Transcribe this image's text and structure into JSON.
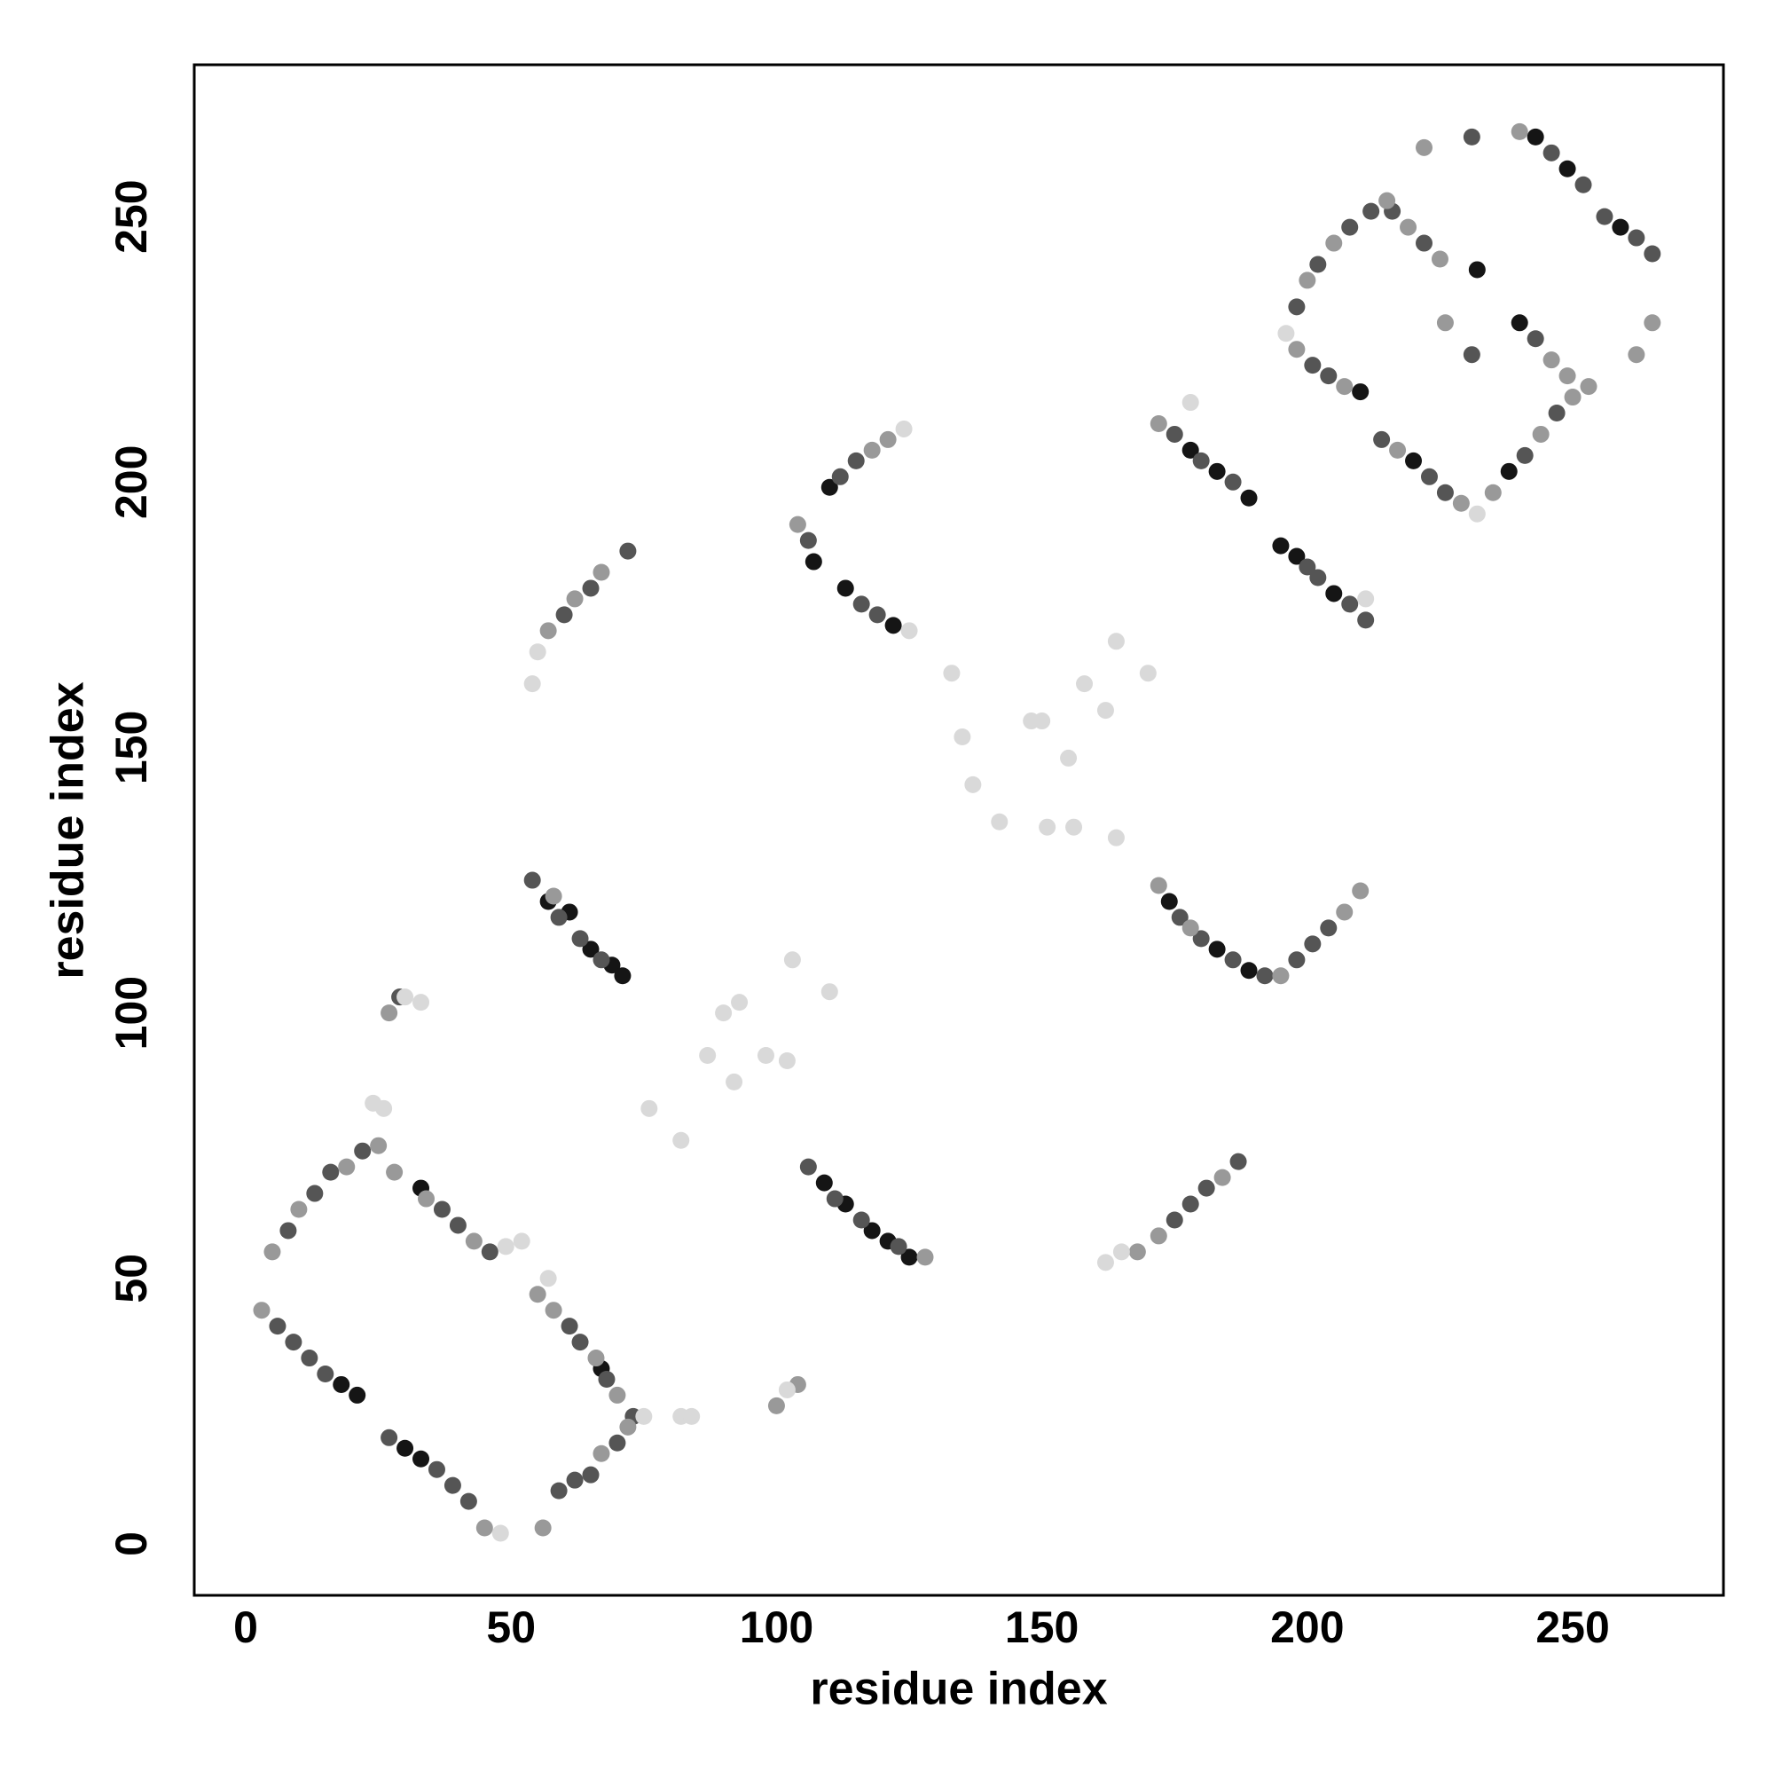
{
  "chart_data": {
    "type": "scatter",
    "xlabel": "residue index",
    "ylabel": "residue index",
    "xlim": [
      -9.7,
      278.4
    ],
    "ylim": [
      -9.7,
      278.6
    ],
    "xticks": [
      0,
      50,
      100,
      150,
      200,
      250
    ],
    "yticks": [
      0,
      50,
      100,
      150,
      200,
      250
    ],
    "grid": false,
    "series": [
      {
        "color": "#151515",
        "x": [
          18,
          21,
          30,
          33,
          57,
          61,
          65,
          69,
          71,
          109,
          113,
          118,
          121,
          125,
          107,
          113,
          122,
          110,
          174,
          183,
          189,
          178,
          183,
          189,
          195,
          198,
          205,
          210,
          220,
          238,
          243,
          249,
          259,
          232,
          240,
          33,
          67
        ],
        "values": [
          30,
          28,
          18,
          16,
          121,
          119,
          112,
          109,
          107,
          68,
          64,
          59,
          57,
          54,
          185,
          180,
          173,
          199,
          121,
          112,
          108,
          206,
          202,
          197,
          188,
          186,
          179,
          217,
          204,
          202,
          265,
          259,
          248,
          240,
          230,
          67,
          33
        ]
      },
      {
        "color": "#555555",
        "x": [
          6,
          9,
          12,
          15,
          27,
          36,
          39,
          42,
          8,
          13,
          16,
          22,
          37,
          40,
          46,
          61,
          63,
          68,
          73,
          59,
          62,
          65,
          70,
          54,
          59,
          63,
          67,
          60,
          65,
          72,
          106,
          111,
          116,
          123,
          106,
          116,
          119,
          112,
          115,
          175,
          178,
          181,
          187,
          176,
          180,
          186,
          192,
          198,
          201,
          204,
          175,
          180,
          186,
          200,
          202,
          208,
          211,
          198,
          202,
          208,
          212,
          216,
          222,
          201,
          204,
          214,
          223,
          226,
          241,
          247,
          246,
          252,
          256,
          262,
          265,
          243,
          231,
          231,
          29
        ],
        "values": [
          41,
          38,
          35,
          32,
          20,
          14,
          11,
          8,
          59,
          66,
          70,
          74,
          63,
          60,
          55,
          41,
          38,
          31,
          24,
          10,
          12,
          13,
          19,
          125,
          118,
          114,
          110,
          175,
          180,
          187,
          71,
          65,
          61,
          56,
          189,
          177,
          175,
          201,
          204,
          61,
          64,
          67,
          72,
          118,
          114,
          110,
          107,
          110,
          113,
          116,
          209,
          204,
          200,
          184,
          182,
          177,
          174,
          233,
          241,
          248,
          251,
          251,
          245,
          222,
          220,
          208,
          201,
          198,
          205,
          213,
          262,
          256,
          250,
          246,
          243,
          227,
          224,
          265,
          103
        ]
      },
      {
        "color": "#999999",
        "x": [
          3,
          45,
          5,
          10,
          19,
          28,
          34,
          43,
          55,
          58,
          66,
          70,
          56,
          67,
          72,
          58,
          57,
          62,
          67,
          128,
          104,
          118,
          121,
          168,
          172,
          184,
          172,
          178,
          195,
          207,
          210,
          172,
          200,
          205,
          215,
          219,
          225,
          198,
          207,
          217,
          229,
          235,
          244,
          250,
          253,
          246,
          249,
          222,
          240,
          265,
          262,
          226,
          27,
          100,
          104,
          25
        ],
        "values": [
          44,
          3,
          55,
          63,
          71,
          70,
          65,
          57,
          47,
          44,
          35,
          28,
          3,
          17,
          22,
          122,
          172,
          178,
          183,
          54,
          192,
          206,
          208,
          55,
          58,
          69,
          124,
          116,
          107,
          119,
          123,
          211,
          238,
          245,
          253,
          248,
          242,
          225,
          218,
          206,
          196,
          198,
          209,
          216,
          218,
          223,
          220,
          263,
          266,
          230,
          224,
          230,
          100,
          26,
          30,
          75
        ]
      },
      {
        "color": "#d9d9d9",
        "x": [
          76,
          82,
          87,
          90,
          92,
          93,
          98,
          102,
          103,
          110,
          133,
          135,
          137,
          142,
          148,
          150,
          151,
          155,
          156,
          158,
          162,
          164,
          164,
          170,
          48,
          49,
          52,
          57,
          75,
          54,
          55,
          124,
          125,
          162,
          165,
          232,
          24,
          26,
          82,
          84,
          102,
          30,
          33,
          196,
          211,
          178
        ],
        "values": [
          82,
          76,
          92,
          100,
          87,
          102,
          92,
          91,
          110,
          104,
          164,
          152,
          143,
          136,
          155,
          155,
          135,
          148,
          135,
          162,
          157,
          133,
          170,
          164,
          2,
          56,
          57,
          50,
          24,
          162,
          168,
          210,
          172,
          53,
          55,
          194,
          83,
          82,
          24,
          24,
          29,
          103,
          102,
          228,
          178,
          215
        ]
      }
    ]
  }
}
